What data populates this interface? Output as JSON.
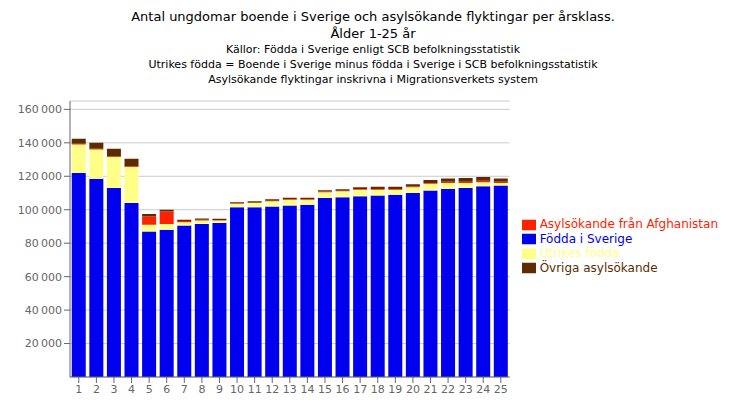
{
  "chart_data": {
    "type": "bar",
    "stacked": true,
    "title": "Antal ungdomar boende i Sverige och asylsökande flyktingar per årsklass.",
    "subtitle": "Ålder 1-25 år",
    "annotations": [
      "Källor: Födda i Sverige enligt SCB befolkningsstatistik",
      "Utrikes födda = Boende i Sverige minus födda i Sverige i SCB befolkningsstatistik",
      "Asylsökande flyktingar inskrivna i Migrationsverkets system"
    ],
    "categories": [
      "1",
      "2",
      "3",
      "4",
      "5",
      "6",
      "7",
      "8",
      "9",
      "10",
      "11",
      "12",
      "13",
      "14",
      "15",
      "16",
      "17",
      "18",
      "19",
      "20",
      "21",
      "22",
      "23",
      "24",
      "25"
    ],
    "series": [
      {
        "name": "Födda i Sverige",
        "color": "#0000EE",
        "values": [
          122000,
          118500,
          113000,
          104000,
          87000,
          88000,
          90500,
          91500,
          92000,
          101500,
          101500,
          102000,
          102500,
          103000,
          107000,
          107500,
          108000,
          108500,
          109000,
          110000,
          111500,
          112500,
          113000,
          114000,
          114500
        ]
      },
      {
        "name": "Utrikes födda",
        "color": "#FFFF88",
        "values": [
          17000,
          17500,
          18500,
          21500,
          4000,
          3500,
          2000,
          2000,
          1500,
          2000,
          2500,
          3000,
          3500,
          3000,
          3500,
          3500,
          4000,
          3500,
          3000,
          3500,
          4000,
          3500,
          3000,
          2500,
          1500
        ]
      },
      {
        "name": "Asylsökande från Afghanistan",
        "color": "#FF2200",
        "values": [
          500,
          500,
          500,
          500,
          5000,
          7500,
          700,
          500,
          400,
          300,
          300,
          400,
          400,
          400,
          400,
          400,
          400,
          400,
          400,
          400,
          500,
          700,
          800,
          800,
          700
        ]
      },
      {
        "name": "Övriga asylsökande",
        "color": "#5C2C00",
        "values": [
          3000,
          3500,
          4500,
          4500,
          1500,
          1000,
          800,
          800,
          700,
          700,
          800,
          800,
          800,
          800,
          800,
          900,
          1100,
          1300,
          1300,
          1300,
          1700,
          2000,
          2200,
          2200,
          2000
        ]
      }
    ],
    "ylim": [
      0,
      165000
    ],
    "yticks": [
      {
        "value": 20000,
        "label": "20 000"
      },
      {
        "value": 40000,
        "label": "40 000"
      },
      {
        "value": 60000,
        "label": "60 000"
      },
      {
        "value": 80000,
        "label": "80 000"
      },
      {
        "value": 100000,
        "label": "100 000"
      },
      {
        "value": 120000,
        "label": "120 000"
      },
      {
        "value": 140000,
        "label": "140 000"
      },
      {
        "value": 160000,
        "label": "160 000"
      }
    ],
    "grid": true,
    "legend": "right"
  }
}
